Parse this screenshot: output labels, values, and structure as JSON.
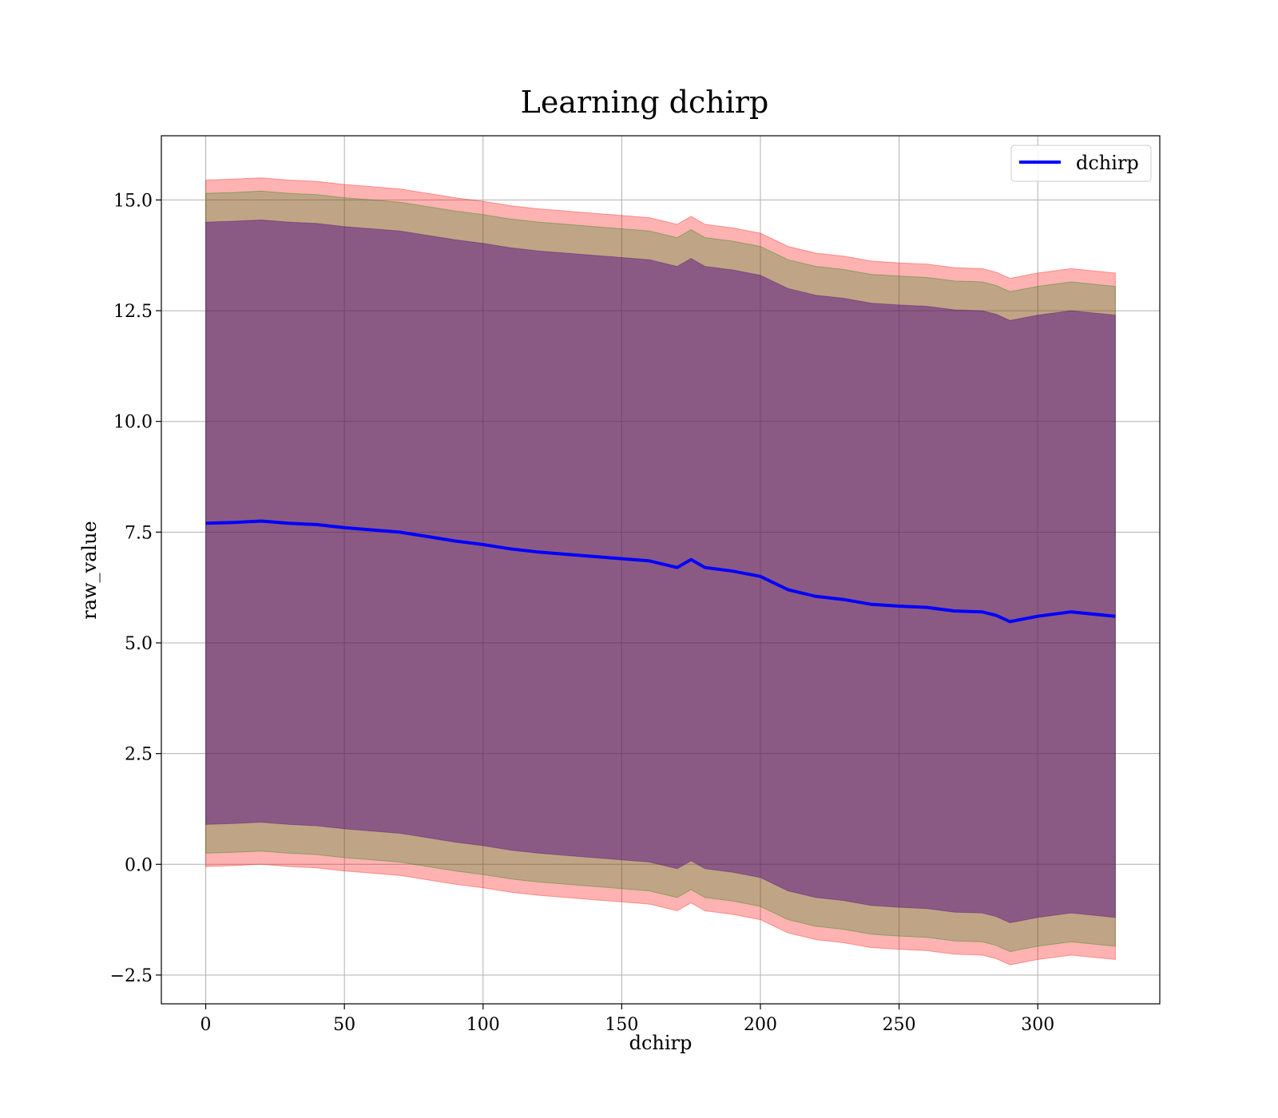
{
  "chart_data": {
    "type": "area",
    "title": "Learning dchirp",
    "xlabel": "dchirp",
    "ylabel": "raw_value",
    "xlim": [
      -16,
      344
    ],
    "ylim": [
      -3.15,
      16.45
    ],
    "xticks": [
      0,
      50,
      100,
      150,
      200,
      250,
      300
    ],
    "yticks": [
      -2.5,
      0.0,
      2.5,
      5.0,
      7.5,
      10.0,
      12.5,
      15.0
    ],
    "xtick_labels": [
      "0",
      "50",
      "100",
      "150",
      "200",
      "250",
      "300"
    ],
    "ytick_labels": [
      "−2.5",
      "0.0",
      "2.5",
      "5.0",
      "7.5",
      "10.0",
      "12.5",
      "15.0"
    ],
    "grid": true,
    "legend": {
      "position": "top-right",
      "entries": [
        "dchirp"
      ]
    },
    "x": [
      0,
      10,
      20,
      30,
      40,
      50,
      60,
      70,
      80,
      90,
      100,
      110,
      120,
      130,
      140,
      150,
      160,
      170,
      175,
      180,
      190,
      200,
      210,
      220,
      230,
      240,
      250,
      260,
      270,
      280,
      285,
      290,
      300,
      312,
      328
    ],
    "series": [
      {
        "name": "dchirp",
        "color": "#0000ff",
        "values": [
          7.7,
          7.72,
          7.75,
          7.7,
          7.67,
          7.6,
          7.55,
          7.5,
          7.4,
          7.3,
          7.22,
          7.12,
          7.05,
          7.0,
          6.95,
          6.9,
          6.85,
          6.7,
          6.88,
          6.7,
          6.62,
          6.5,
          6.2,
          6.05,
          5.98,
          5.87,
          5.83,
          5.8,
          5.72,
          5.7,
          5.62,
          5.48,
          5.6,
          5.7,
          5.6
        ]
      }
    ],
    "bands": [
      {
        "color": "#ff0000",
        "opacity": 0.3,
        "upper": [
          15.45,
          15.47,
          15.5,
          15.45,
          15.42,
          15.35,
          15.3,
          15.25,
          15.15,
          15.05,
          14.97,
          14.87,
          14.8,
          14.75,
          14.7,
          14.65,
          14.6,
          14.45,
          14.63,
          14.45,
          14.37,
          14.25,
          13.95,
          13.8,
          13.73,
          13.62,
          13.58,
          13.55,
          13.47,
          13.45,
          13.37,
          13.23,
          13.35,
          13.45,
          13.35
        ],
        "lower": [
          -0.05,
          -0.03,
          0.0,
          -0.05,
          -0.08,
          -0.15,
          -0.2,
          -0.25,
          -0.35,
          -0.45,
          -0.53,
          -0.63,
          -0.7,
          -0.75,
          -0.8,
          -0.85,
          -0.9,
          -1.05,
          -0.87,
          -1.05,
          -1.13,
          -1.25,
          -1.55,
          -1.7,
          -1.77,
          -1.88,
          -1.92,
          -1.95,
          -2.03,
          -2.05,
          -2.13,
          -2.27,
          -2.15,
          -2.05,
          -2.15
        ]
      },
      {
        "color": "#008000",
        "opacity": 0.25,
        "upper": [
          15.15,
          15.17,
          15.2,
          15.15,
          15.12,
          15.05,
          15.0,
          14.95,
          14.85,
          14.75,
          14.67,
          14.57,
          14.5,
          14.45,
          14.4,
          14.35,
          14.3,
          14.15,
          14.33,
          14.15,
          14.07,
          13.95,
          13.65,
          13.5,
          13.43,
          13.32,
          13.28,
          13.25,
          13.17,
          13.15,
          13.07,
          12.93,
          13.05,
          13.15,
          13.05
        ],
        "lower": [
          0.25,
          0.27,
          0.3,
          0.25,
          0.22,
          0.15,
          0.1,
          0.05,
          -0.05,
          -0.15,
          -0.23,
          -0.33,
          -0.4,
          -0.45,
          -0.5,
          -0.55,
          -0.6,
          -0.75,
          -0.57,
          -0.75,
          -0.83,
          -0.95,
          -1.25,
          -1.4,
          -1.47,
          -1.58,
          -1.62,
          -1.65,
          -1.73,
          -1.75,
          -1.83,
          -1.97,
          -1.85,
          -1.75,
          -1.85
        ]
      },
      {
        "color": "#4b0082",
        "opacity": 0.45,
        "upper": [
          14.5,
          14.52,
          14.55,
          14.5,
          14.47,
          14.4,
          14.35,
          14.3,
          14.2,
          14.1,
          14.02,
          13.92,
          13.85,
          13.8,
          13.75,
          13.7,
          13.65,
          13.5,
          13.68,
          13.5,
          13.42,
          13.3,
          13.0,
          12.85,
          12.78,
          12.67,
          12.63,
          12.6,
          12.52,
          12.5,
          12.42,
          12.28,
          12.4,
          12.5,
          12.4
        ],
        "lower": [
          0.9,
          0.92,
          0.95,
          0.9,
          0.87,
          0.8,
          0.75,
          0.7,
          0.6,
          0.5,
          0.42,
          0.32,
          0.25,
          0.2,
          0.15,
          0.1,
          0.05,
          -0.1,
          0.08,
          -0.1,
          -0.18,
          -0.3,
          -0.6,
          -0.75,
          -0.82,
          -0.93,
          -0.97,
          -1.0,
          -1.08,
          -1.1,
          -1.18,
          -1.32,
          -1.2,
          -1.1,
          -1.2
        ]
      }
    ]
  }
}
